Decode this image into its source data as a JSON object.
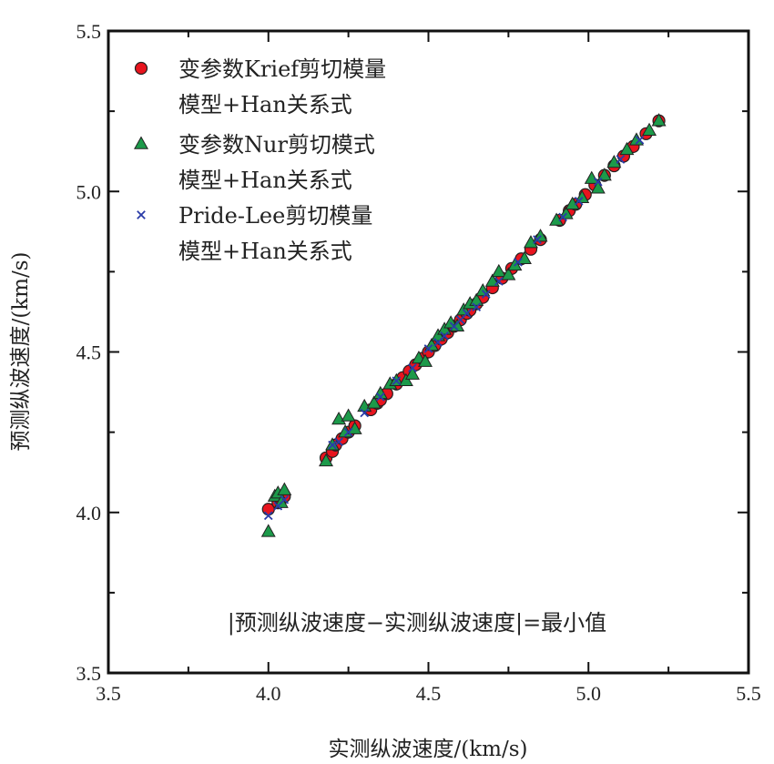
{
  "chart_data": {
    "type": "scatter",
    "xlabel": "实测纵波速度/(km/s)",
    "ylabel": "预测纵波速度/(km/s)",
    "xlim": [
      3.5,
      5.5
    ],
    "ylim": [
      3.5,
      5.5
    ],
    "xticks": [
      "3.5",
      "4.0",
      "4.5",
      "5.0",
      "5.5"
    ],
    "yticks": [
      "3.5",
      "4.0",
      "4.5",
      "5.0",
      "5.5"
    ],
    "grid": false,
    "legend_position": "top-left",
    "annotation": "|预测纵波速度−实测纵波速度|=最小值",
    "series": [
      {
        "name": "变参数Krief剪切模量\n模型+Han关系式",
        "marker": "circle",
        "color": "#e8141e",
        "x": [
          4.0,
          4.03,
          4.04,
          4.05,
          4.18,
          4.2,
          4.21,
          4.23,
          4.25,
          4.27,
          4.32,
          4.34,
          4.35,
          4.37,
          4.4,
          4.42,
          4.44,
          4.46,
          4.48,
          4.5,
          4.52,
          4.54,
          4.56,
          4.58,
          4.6,
          4.62,
          4.63,
          4.65,
          4.67,
          4.7,
          4.73,
          4.76,
          4.79,
          4.82,
          4.85,
          4.91,
          4.94,
          4.96,
          4.99,
          5.02,
          5.05,
          5.08,
          5.11,
          5.14,
          5.18,
          5.22
        ],
        "y": [
          4.01,
          4.03,
          4.04,
          4.05,
          4.17,
          4.19,
          4.21,
          4.23,
          4.25,
          4.27,
          4.32,
          4.34,
          4.35,
          4.37,
          4.4,
          4.42,
          4.44,
          4.46,
          4.48,
          4.5,
          4.52,
          4.54,
          4.56,
          4.58,
          4.6,
          4.62,
          4.63,
          4.65,
          4.67,
          4.7,
          4.73,
          4.76,
          4.79,
          4.82,
          4.85,
          4.91,
          4.94,
          4.96,
          4.99,
          5.02,
          5.05,
          5.08,
          5.11,
          5.14,
          5.18,
          5.22
        ]
      },
      {
        "name": "变参数Nur剪切模式\n模型+Han关系式",
        "marker": "triangle",
        "color": "#1c9a4a",
        "x": [
          4.0,
          4.02,
          4.03,
          4.04,
          4.05,
          4.18,
          4.2,
          4.22,
          4.24,
          4.25,
          4.27,
          4.3,
          4.33,
          4.35,
          4.38,
          4.4,
          4.43,
          4.45,
          4.47,
          4.49,
          4.51,
          4.53,
          4.55,
          4.57,
          4.59,
          4.61,
          4.63,
          4.65,
          4.67,
          4.7,
          4.72,
          4.75,
          4.77,
          4.8,
          4.82,
          4.85,
          4.9,
          4.93,
          4.95,
          4.98,
          5.01,
          5.03,
          5.05,
          5.08,
          5.12,
          5.15,
          5.19,
          5.22
        ],
        "y": [
          3.94,
          4.05,
          4.06,
          4.03,
          4.07,
          4.16,
          4.21,
          4.29,
          4.25,
          4.3,
          4.26,
          4.33,
          4.34,
          4.37,
          4.4,
          4.41,
          4.41,
          4.43,
          4.48,
          4.47,
          4.52,
          4.55,
          4.57,
          4.59,
          4.58,
          4.63,
          4.65,
          4.66,
          4.69,
          4.72,
          4.75,
          4.74,
          4.77,
          4.79,
          4.84,
          4.86,
          4.91,
          4.93,
          4.96,
          4.98,
          5.04,
          5.01,
          5.05,
          5.09,
          5.13,
          5.16,
          5.19,
          5.22
        ]
      },
      {
        "name": "Pride-Lee剪切模量\n模型+Han关系式",
        "marker": "x",
        "color": "#2a3ca8",
        "x": [
          4.0,
          4.03,
          4.05,
          4.2,
          4.22,
          4.25,
          4.3,
          4.35,
          4.4,
          4.45,
          4.5,
          4.53,
          4.55,
          4.58,
          4.6,
          4.62,
          4.65,
          4.68,
          4.72,
          4.78,
          4.84,
          4.92,
          4.97,
          5.03,
          5.1,
          5.16
        ],
        "y": [
          3.99,
          4.02,
          4.04,
          4.21,
          4.22,
          4.25,
          4.31,
          4.36,
          4.41,
          4.45,
          4.51,
          4.53,
          4.55,
          4.58,
          4.6,
          4.62,
          4.64,
          4.68,
          4.72,
          4.78,
          4.85,
          4.92,
          4.97,
          5.03,
          5.1,
          5.16
        ]
      }
    ]
  }
}
